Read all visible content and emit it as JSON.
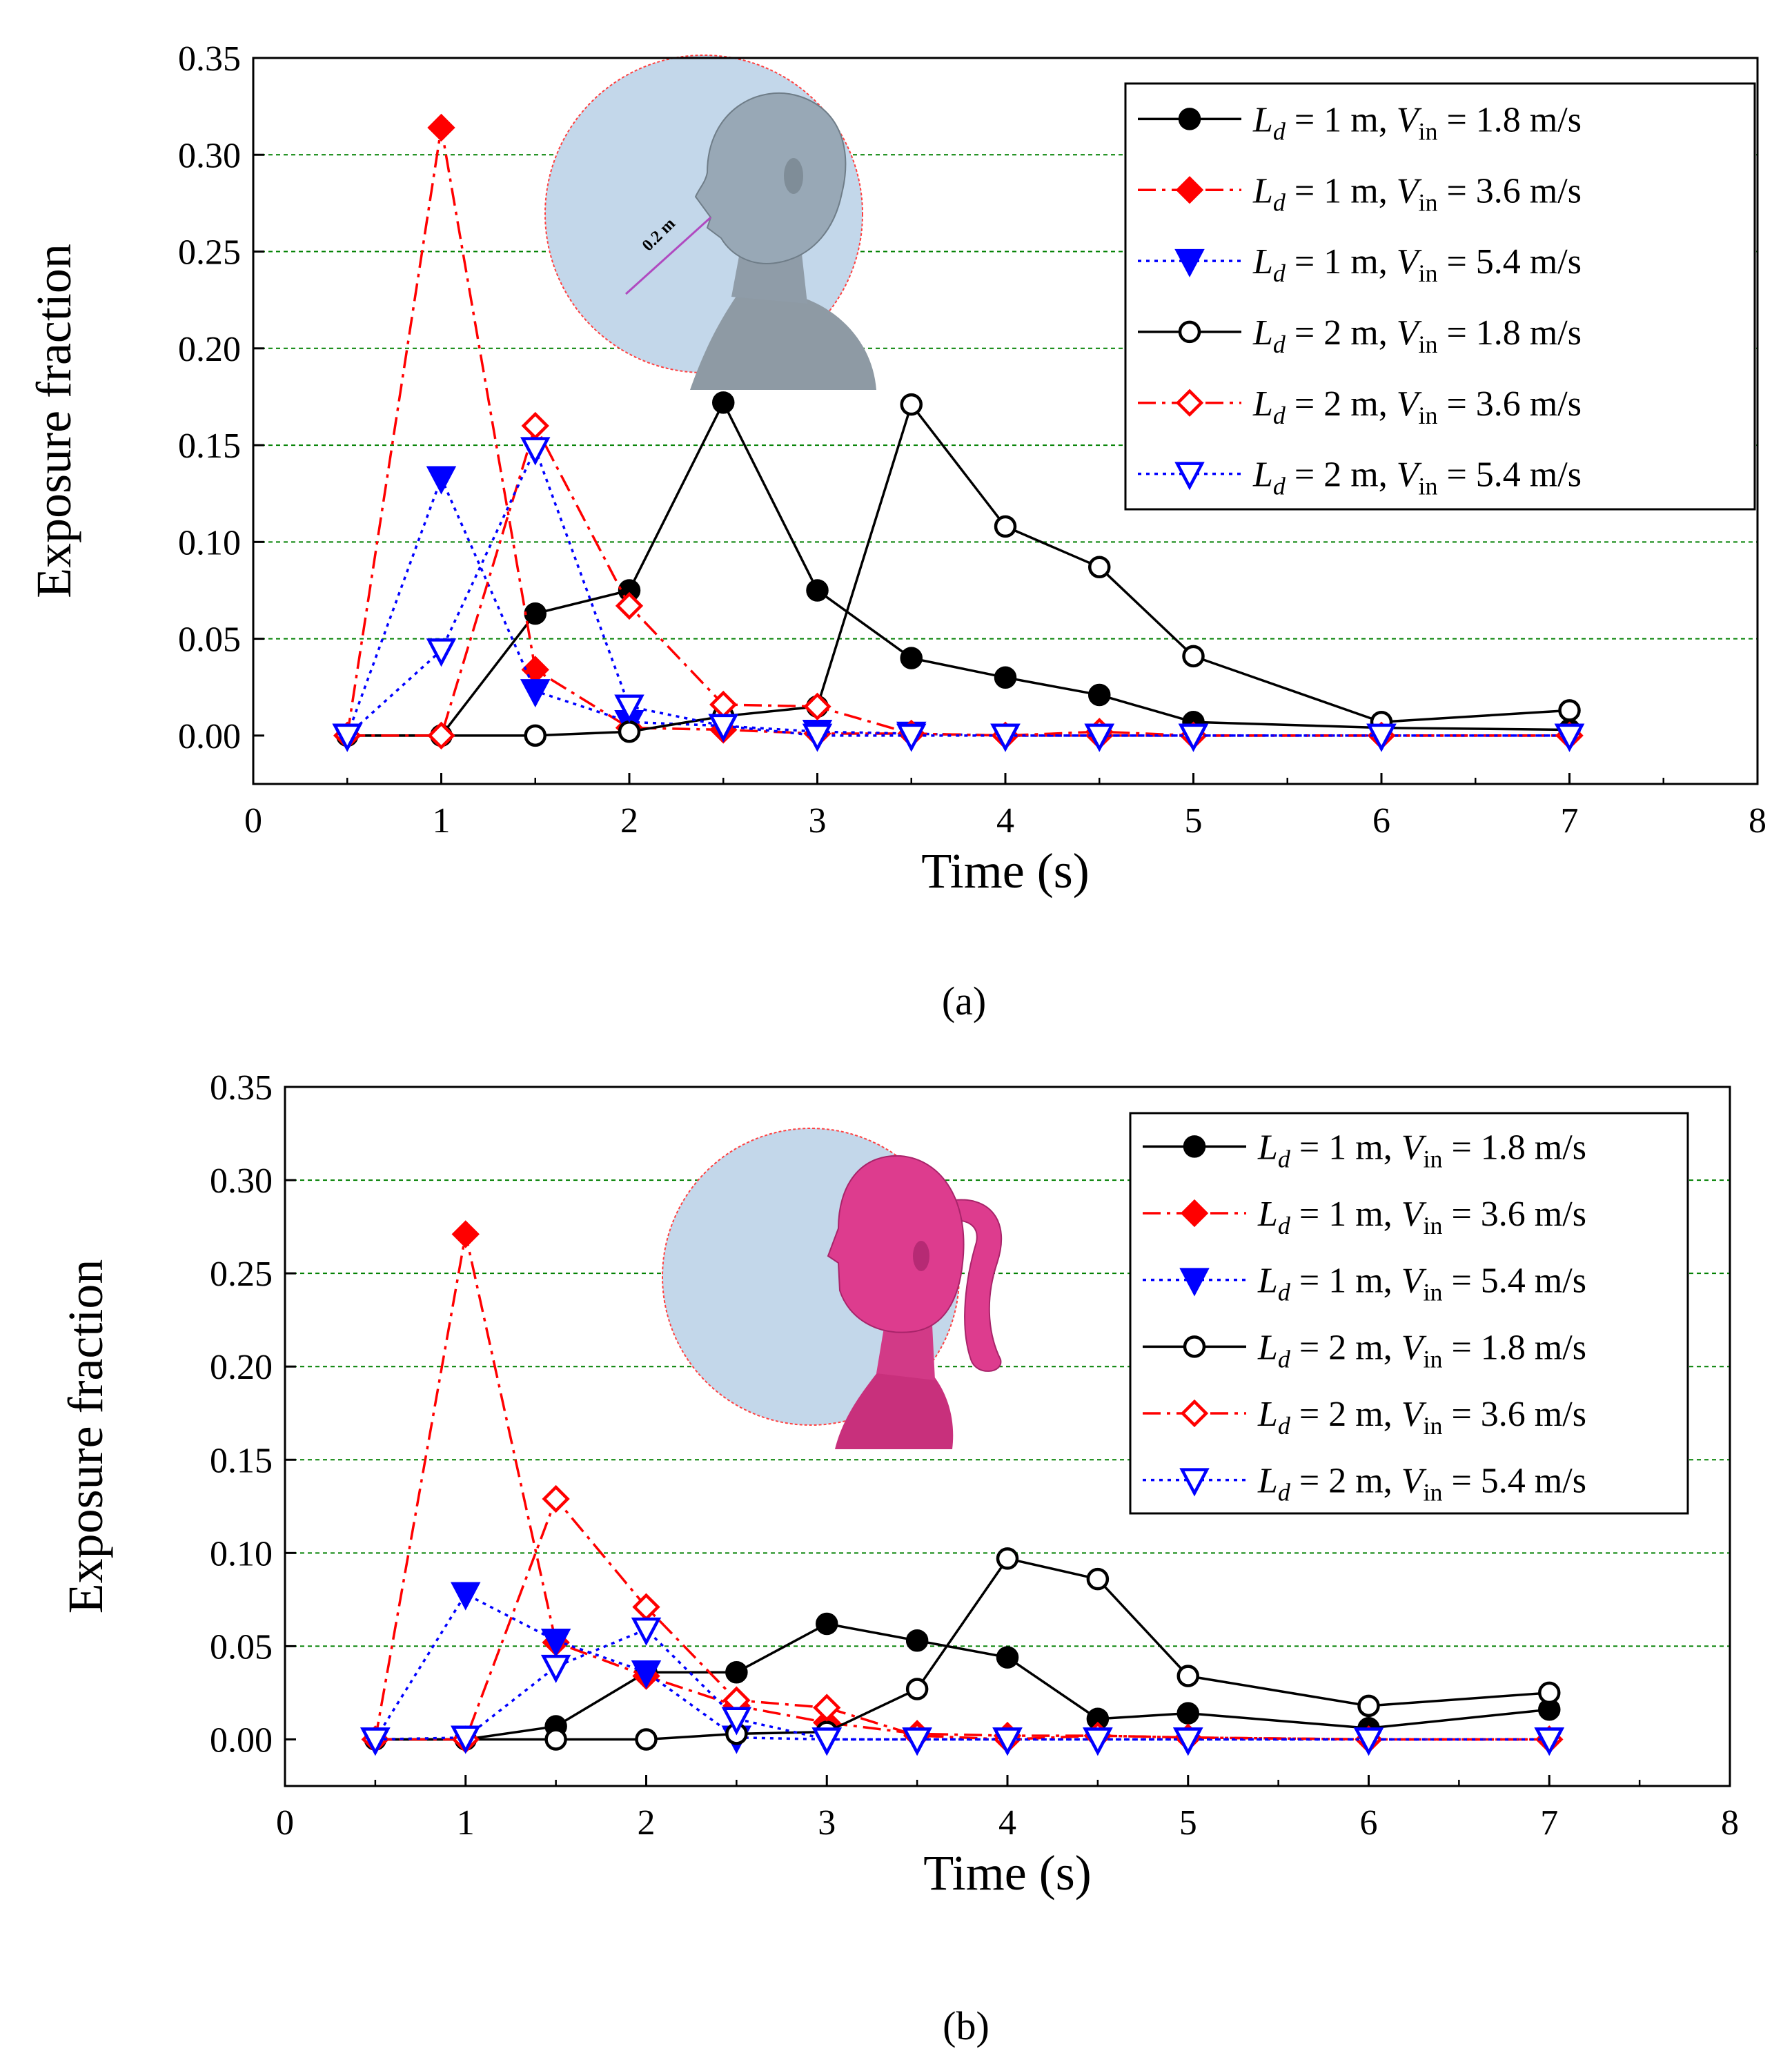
{
  "colors": {
    "black": "#000000",
    "red": "#ff0000",
    "blue": "#0000ff",
    "grid": "#008000",
    "circle_fill": "#c3d7ea",
    "circle_edge": "#ff4040",
    "head_a": "#98a8b6",
    "head_b": "#dd3c8e",
    "radius_line": "#b04ac0"
  },
  "chart_data": [
    {
      "type": "line",
      "panel_label": "(a)",
      "xlabel": "Time (s)",
      "ylabel": "Exposure fraction",
      "xlim": [
        0,
        8
      ],
      "ylim": [
        -0.025,
        0.35
      ],
      "x_ticks": [
        "0",
        "1",
        "2",
        "3",
        "4",
        "5",
        "6",
        "7",
        "8"
      ],
      "y_ticks": [
        "0.00",
        "0.05",
        "0.10",
        "0.15",
        "0.20",
        "0.25",
        "0.30",
        "0.35"
      ],
      "grid": "horizontal dashed",
      "legend_position": "top-right",
      "inset_annotation": "0.2 m",
      "series": [
        {
          "name": "Ld = 1 m, Vin = 1.8 m/s",
          "legend": [
            "L",
            "d",
            " = 1 m, ",
            "V",
            "in",
            " = 1.8 m/s"
          ],
          "color_key": "black",
          "dash": "solid",
          "marker": "circle-filled",
          "x": [
            0.5,
            1,
            1.5,
            2,
            2.5,
            3,
            3.5,
            4,
            4.5,
            5,
            6,
            7
          ],
          "y": [
            0,
            0,
            0.063,
            0.075,
            0.172,
            0.075,
            0.04,
            0.03,
            0.021,
            0.007,
            0.004,
            0.003
          ]
        },
        {
          "name": "Ld = 1 m, Vin = 3.6 m/s",
          "legend": [
            "L",
            "d",
            " = 1 m, ",
            "V",
            "in",
            " = 3.6 m/s"
          ],
          "color_key": "red",
          "dash": "dashdot",
          "marker": "diamond-filled",
          "x": [
            0.5,
            1,
            1.5,
            2,
            2.5,
            3,
            3.5,
            4,
            4.5,
            5,
            6,
            7
          ],
          "y": [
            0,
            0.314,
            0.034,
            0.004,
            0.003,
            0.001,
            0.001,
            0,
            0,
            0,
            0,
            0
          ]
        },
        {
          "name": "Ld = 1 m, Vin = 5.4 m/s",
          "legend": [
            "L",
            "d",
            " = 1 m, ",
            "V",
            "in",
            " = 5.4 m/s"
          ],
          "color_key": "blue",
          "dash": "dotted",
          "marker": "triangle-down-filled",
          "x": [
            0.5,
            1,
            1.5,
            2,
            2.5,
            3,
            3.5,
            4,
            4.5,
            5,
            6,
            7
          ],
          "y": [
            0,
            0.133,
            0.023,
            0.007,
            0.005,
            0.002,
            0.001,
            0,
            0,
            0,
            0,
            0
          ]
        },
        {
          "name": "Ld = 2 m, Vin = 1.8 m/s",
          "legend": [
            "L",
            "d",
            " = 2 m, ",
            "V",
            "in",
            " = 1.8 m/s"
          ],
          "color_key": "black",
          "dash": "solid",
          "marker": "circle-open",
          "x": [
            0.5,
            1,
            1.5,
            2,
            2.5,
            3,
            3.5,
            4,
            4.5,
            5,
            6,
            7
          ],
          "y": [
            0,
            0,
            0,
            0.002,
            0.01,
            0.015,
            0.171,
            0.108,
            0.087,
            0.041,
            0.007,
            0.013
          ]
        },
        {
          "name": "Ld = 2 m, Vin = 3.6 m/s",
          "legend": [
            "L",
            "d",
            " = 2 m, ",
            "V",
            "in",
            " = 3.6 m/s"
          ],
          "color_key": "red",
          "dash": "dashdot",
          "marker": "diamond-open",
          "x": [
            0.5,
            1,
            1.5,
            2,
            2.5,
            3,
            3.5,
            4,
            4.5,
            5,
            6,
            7
          ],
          "y": [
            0,
            0,
            0.16,
            0.067,
            0.016,
            0.015,
            0.001,
            0,
            0.002,
            0,
            0,
            0
          ]
        },
        {
          "name": "Ld = 2 m, Vin = 5.4 m/s",
          "legend": [
            "L",
            "d",
            " = 2 m, ",
            "V",
            "in",
            " = 5.4 m/s"
          ],
          "color_key": "blue",
          "dash": "dotted",
          "marker": "triangle-down-open",
          "x": [
            0.5,
            1,
            1.5,
            2,
            2.5,
            3,
            3.5,
            4,
            4.5,
            5,
            6,
            7
          ],
          "y": [
            0,
            0.044,
            0.148,
            0.015,
            0.005,
            0,
            0,
            0,
            0,
            0,
            0,
            0
          ]
        }
      ]
    },
    {
      "type": "line",
      "panel_label": "(b)",
      "xlabel": "Time (s)",
      "ylabel": "Exposure fraction",
      "xlim": [
        0,
        8
      ],
      "ylim": [
        -0.025,
        0.35
      ],
      "x_ticks": [
        "0",
        "1",
        "2",
        "3",
        "4",
        "5",
        "6",
        "7",
        "8"
      ],
      "y_ticks": [
        "0.00",
        "0.05",
        "0.10",
        "0.15",
        "0.20",
        "0.25",
        "0.30",
        "0.35"
      ],
      "grid": "horizontal dashed",
      "legend_position": "top-right",
      "series": [
        {
          "name": "Ld = 1 m, Vin = 1.8 m/s",
          "legend": [
            "L",
            "d",
            " = 1 m, ",
            "V",
            "in",
            " = 1.8 m/s"
          ],
          "color_key": "black",
          "dash": "solid",
          "marker": "circle-filled",
          "x": [
            0.5,
            1,
            1.5,
            2,
            2.5,
            3,
            3.5,
            4,
            4.5,
            5,
            6,
            7
          ],
          "y": [
            0,
            0,
            0.007,
            0.036,
            0.036,
            0.062,
            0.053,
            0.044,
            0.011,
            0.014,
            0.006,
            0.016
          ]
        },
        {
          "name": "Ld = 1 m, Vin = 3.6 m/s",
          "legend": [
            "L",
            "d",
            " = 1 m, ",
            "V",
            "in",
            " = 3.6 m/s"
          ],
          "color_key": "red",
          "dash": "dashdot",
          "marker": "diamond-filled",
          "x": [
            0.5,
            1,
            1.5,
            2,
            2.5,
            3,
            3.5,
            4,
            4.5,
            5,
            6,
            7
          ],
          "y": [
            0,
            0.271,
            0.052,
            0.034,
            0.018,
            0.009,
            0.003,
            0.002,
            0.002,
            0.001,
            0,
            0
          ]
        },
        {
          "name": "Ld = 1 m, Vin = 5.4 m/s",
          "legend": [
            "L",
            "d",
            " = 1 m, ",
            "V",
            "in",
            " = 5.4 m/s"
          ],
          "color_key": "blue",
          "dash": "dotted",
          "marker": "triangle-down-filled",
          "x": [
            0.5,
            1,
            1.5,
            2,
            2.5,
            3,
            3.5,
            4,
            4.5,
            5,
            6,
            7
          ],
          "y": [
            0,
            0.078,
            0.053,
            0.036,
            0.001,
            0,
            0,
            0,
            0,
            0,
            0,
            0
          ]
        },
        {
          "name": "Ld = 2 m, Vin = 1.8 m/s",
          "legend": [
            "L",
            "d",
            " = 2 m, ",
            "V",
            "in",
            " = 1.8 m/s"
          ],
          "color_key": "black",
          "dash": "solid",
          "marker": "circle-open",
          "x": [
            0.5,
            1,
            1.5,
            2,
            2.5,
            3,
            3.5,
            4,
            4.5,
            5,
            6,
            7
          ],
          "y": [
            0,
            0,
            0,
            0,
            0.003,
            0.004,
            0.027,
            0.097,
            0.086,
            0.034,
            0.018,
            0.025
          ]
        },
        {
          "name": "Ld = 2 m, Vin = 3.6 m/s",
          "legend": [
            "L",
            "d",
            " = 2 m, ",
            "V",
            "in",
            " = 3.6 m/s"
          ],
          "color_key": "red",
          "dash": "dashdot",
          "marker": "diamond-open",
          "x": [
            0.5,
            1,
            1.5,
            2,
            2.5,
            3,
            3.5,
            4,
            4.5,
            5,
            6,
            7
          ],
          "y": [
            0,
            0,
            0.129,
            0.071,
            0.021,
            0.017,
            0.002,
            0,
            0.002,
            0.001,
            0,
            0
          ]
        },
        {
          "name": "Ld = 2 m, Vin = 5.4 m/s",
          "legend": [
            "L",
            "d",
            " = 2 m, ",
            "V",
            "in",
            " = 5.4 m/s"
          ],
          "color_key": "blue",
          "dash": "dotted",
          "marker": "triangle-down-open",
          "x": [
            0.5,
            1,
            1.5,
            2,
            2.5,
            3,
            3.5,
            4,
            4.5,
            5,
            6,
            7
          ],
          "y": [
            0,
            0.001,
            0.039,
            0.059,
            0.011,
            0,
            0,
            0,
            0,
            0,
            0,
            0
          ]
        }
      ]
    }
  ]
}
